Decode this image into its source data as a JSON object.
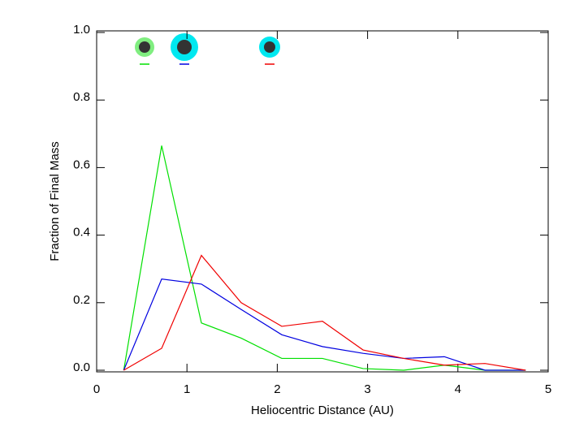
{
  "chart_data": {
    "type": "line",
    "xlabel": "Heliocentric Distance (AU)",
    "ylabel": "Fraction of Final Mass",
    "x": [
      0.3,
      0.72,
      1.16,
      1.6,
      2.05,
      2.5,
      2.95,
      3.4,
      3.85,
      4.3,
      4.75
    ],
    "series": [
      {
        "color": "#00e000",
        "values": [
          0,
          0.665,
          0.14,
          0.095,
          0.035,
          0.035,
          0.005,
          0.0,
          0.015,
          0.0,
          0.0
        ]
      },
      {
        "color": "#0000e0",
        "values": [
          0,
          0.27,
          0.255,
          0.18,
          0.105,
          0.07,
          0.05,
          0.035,
          0.04,
          0.0,
          0.0
        ]
      },
      {
        "color": "#f00000",
        "values": [
          0,
          0.065,
          0.34,
          0.2,
          0.13,
          0.145,
          0.06,
          0.035,
          0.015,
          0.02,
          0.0
        ]
      }
    ],
    "xlim": [
      0,
      5
    ],
    "xticks": [
      0,
      1,
      2,
      3,
      4,
      5
    ],
    "ylim": [
      0,
      1
    ],
    "yticks": [
      {
        "value": 0,
        "label": "0.0"
      },
      0.2,
      0.4,
      0.6,
      0.8,
      {
        "value": 1,
        "label": "1.0"
      }
    ]
  }
}
